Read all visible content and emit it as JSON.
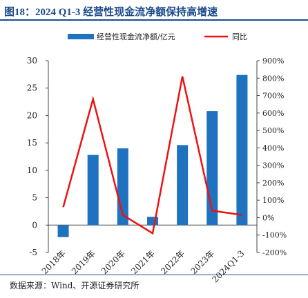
{
  "title": "图18：2024 Q1-3 经营性现金流净额保持高增速",
  "source": "数据来源：Wind、开源证券研究所",
  "colors": {
    "bar": "#1f72c0",
    "line": "#ee1111",
    "title": "#1a4a8a"
  },
  "chart_data": {
    "type": "bar+line",
    "categories": [
      "2018年",
      "2019年",
      "2020年",
      "2021年",
      "2022年",
      "2023年",
      "2024Q1-3"
    ],
    "series": [
      {
        "name": "经营性现金流净额/亿元",
        "type": "bar",
        "axis": "left",
        "values": [
          -2.2,
          12.8,
          14.0,
          1.5,
          14.6,
          20.8,
          27.4
        ]
      },
      {
        "name": "同比",
        "type": "line",
        "axis": "right",
        "unit": "%",
        "values": [
          60,
          680,
          15,
          -90,
          810,
          40,
          15
        ]
      }
    ],
    "left_axis": {
      "min": -5,
      "max": 30,
      "ticks": [
        "-5",
        "0",
        "5",
        "10",
        "15",
        "20",
        "25",
        "30"
      ]
    },
    "right_axis": {
      "min": -200,
      "max": 900,
      "ticks": [
        "-200%",
        "-100%",
        "0%",
        "100%",
        "200%",
        "300%",
        "400%",
        "500%",
        "600%",
        "700%",
        "800%",
        "900%"
      ]
    },
    "legend_position": "top",
    "grid": false
  }
}
